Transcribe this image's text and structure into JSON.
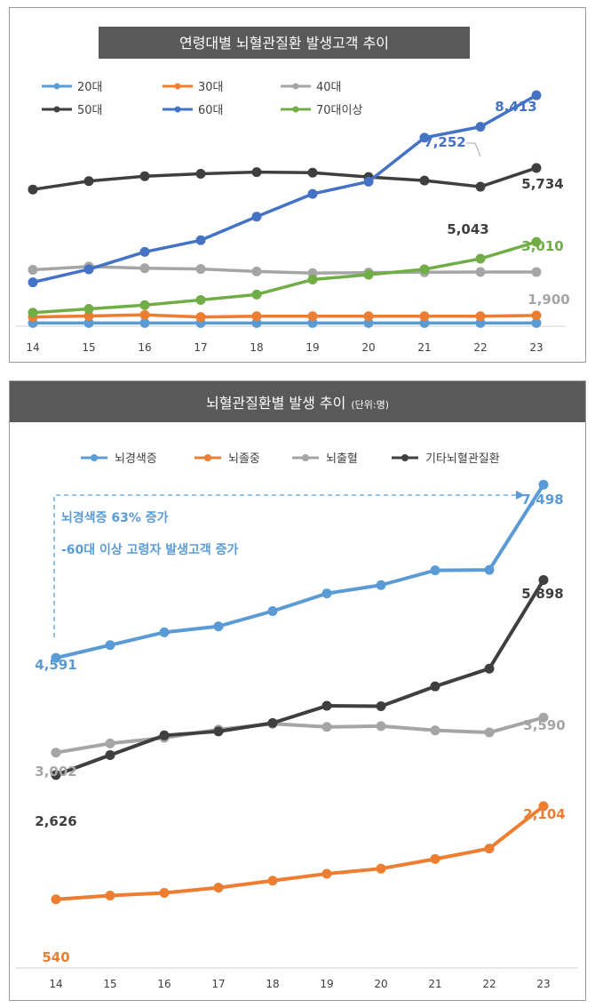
{
  "charts_meta": {
    "colors": {
      "s20": "#5b9bd5",
      "s30": "#ed7d31",
      "s40": "#a5a5a5",
      "s50": "#3f3f3f",
      "s60": "#4472c4",
      "s70": "#70ad47",
      "title_bg": "#595959",
      "axis": "#d0d0d0"
    }
  },
  "chart_data": [
    {
      "type": "line",
      "title": "연령대별 뇌혈관질환 발생고객 추이",
      "x": [
        "14",
        "15",
        "16",
        "17",
        "18",
        "19",
        "20",
        "21",
        "22",
        "23"
      ],
      "series": [
        {
          "name": "20대",
          "color": "#5b9bd5",
          "values": [
            20,
            20,
            20,
            20,
            20,
            20,
            20,
            20,
            20,
            20
          ]
        },
        {
          "name": "30대",
          "color": "#ed7d31",
          "values": [
            240,
            280,
            320,
            240,
            270,
            270,
            270,
            270,
            270,
            300
          ]
        },
        {
          "name": "40대",
          "color": "#a5a5a5",
          "values": [
            1980,
            2100,
            2040,
            2010,
            1920,
            1860,
            1880,
            1890,
            1900,
            1900
          ]
        },
        {
          "name": "50대",
          "color": "#3f3f3f",
          "values": [
            4940,
            5250,
            5430,
            5520,
            5580,
            5560,
            5400,
            5270,
            5043,
            5734
          ]
        },
        {
          "name": "60대",
          "color": "#4472c4",
          "values": [
            1520,
            2000,
            2640,
            3070,
            3940,
            4780,
            5230,
            6850,
            7252,
            8413
          ]
        },
        {
          "name": "70대이상",
          "color": "#70ad47",
          "values": [
            400,
            540,
            680,
            870,
            1070,
            1620,
            1800,
            2000,
            2390,
            3010
          ]
        }
      ],
      "labels": [
        {
          "text": "8,413",
          "color": "#4472c4"
        },
        {
          "text": "7,252",
          "color": "#4472c4"
        },
        {
          "text": "5,734",
          "color": "#3f3f3f"
        },
        {
          "text": "5,043",
          "color": "#3f3f3f"
        },
        {
          "text": "3,010",
          "color": "#70ad47"
        },
        {
          "text": "1,900",
          "color": "#a5a5a5"
        }
      ],
      "ylim": [
        0,
        9500
      ],
      "grid": false,
      "legend": "top-left"
    },
    {
      "type": "line",
      "title": "뇌혈관질환별 발생 추이",
      "subtitle": "(단위:명)",
      "x": [
        "14",
        "15",
        "16",
        "17",
        "18",
        "19",
        "20",
        "21",
        "22",
        "23"
      ],
      "series": [
        {
          "name": "뇌경색증",
          "color": "#5b9bd5",
          "values": [
            4591,
            4806,
            5020,
            5121,
            5376,
            5672,
            5812,
            6060,
            6068,
            7498
          ]
        },
        {
          "name": "뇌졸중",
          "color": "#ed7d31",
          "values": [
            540,
            604,
            648,
            736,
            854,
            970,
            1056,
            1217,
            1393,
            2104
          ]
        },
        {
          "name": "뇌출혈",
          "color": "#a5a5a5",
          "values": [
            3002,
            3156,
            3251,
            3389,
            3486,
            3433,
            3447,
            3375,
            3340,
            3590
          ]
        },
        {
          "name": "기타뇌혈관질환",
          "color": "#3f3f3f",
          "values": [
            2626,
            2961,
            3291,
            3358,
            3499,
            3787,
            3780,
            4113,
            4411,
            5898
          ]
        }
      ],
      "labels": [
        {
          "text": "7,498",
          "color": "#5b9bd5"
        },
        {
          "text": "4,591",
          "color": "#5b9bd5"
        },
        {
          "text": "5,898",
          "color": "#3f3f3f"
        },
        {
          "text": "3,590",
          "color": "#a5a5a5"
        },
        {
          "text": "3,002",
          "color": "#a5a5a5"
        },
        {
          "text": "2,626",
          "color": "#3f3f3f"
        },
        {
          "text": "2,104",
          "color": "#ed7d31"
        },
        {
          "text": "540",
          "color": "#ed7d31"
        }
      ],
      "annotation": [
        "뇌경색증 63% 증가",
        "-60대 이상 고령자 발생고객 증가"
      ],
      "ylim": [
        0,
        8500
      ],
      "grid": false,
      "legend": "top"
    }
  ]
}
